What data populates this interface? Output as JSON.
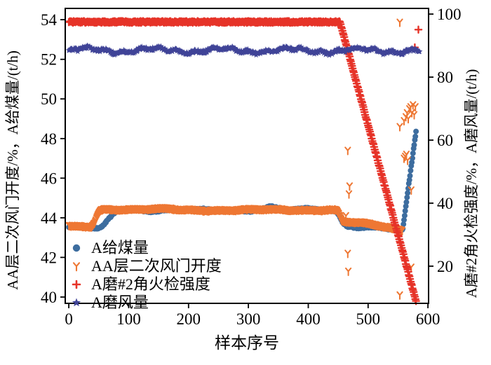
{
  "chart_data": {
    "type": "scatter",
    "title": "",
    "xlabel": "样本序号",
    "ylabel_left": "AA层二次风门开度/%，A给煤量/(t/h)",
    "ylabel_right": "A磨#2角火检强度/%，A磨风量/(t/h)",
    "x_range": [
      -6,
      601
    ],
    "x_ticks": [
      0,
      100,
      200,
      300,
      400,
      500,
      600
    ],
    "y_left_range": [
      39.68,
      54.57
    ],
    "y_left_ticks": [
      40,
      42,
      44,
      46,
      48,
      50,
      52,
      54
    ],
    "y_right_range": [
      8.2,
      101.8
    ],
    "y_right_ticks": [
      20,
      40,
      60,
      80,
      100
    ],
    "grid": false,
    "background": "#ffffff",
    "frame_color": "#000000",
    "series": [
      {
        "name": "A给煤量",
        "axis": "left",
        "marker": "circle",
        "color": "#3D6D9F",
        "size": 4,
        "sampling": {
          "start": 0,
          "end": 580,
          "step": 1
        },
        "keypoints": [
          [
            0,
            43.5
          ],
          [
            30,
            43.5
          ],
          [
            40,
            43.42
          ],
          [
            50,
            43.4
          ],
          [
            56,
            43.5
          ],
          [
            66,
            43.9
          ],
          [
            78,
            44.35
          ],
          [
            90,
            44.45
          ],
          [
            100,
            44.42
          ],
          [
            130,
            44.38
          ],
          [
            200,
            44.36
          ],
          [
            300,
            44.38
          ],
          [
            336,
            44.55
          ],
          [
            348,
            44.5
          ],
          [
            360,
            44.4
          ],
          [
            430,
            44.4
          ],
          [
            447,
            44.32
          ],
          [
            452,
            44.1
          ],
          [
            458,
            43.75
          ],
          [
            465,
            43.6
          ],
          [
            500,
            43.55
          ],
          [
            530,
            43.45
          ],
          [
            548,
            43.38
          ],
          [
            557,
            43.35
          ],
          [
            558,
            43.4
          ],
          [
            580,
            48.3
          ]
        ],
        "wave": [
          [
            0.05,
            0.035,
            0.5
          ],
          [
            0.035,
            0.11,
            2.0
          ]
        ],
        "jitter": 0.07,
        "outliers": []
      },
      {
        "name": "AA层二次风门开度",
        "axis": "left",
        "marker": "tri",
        "color": "#EE7733",
        "size": 5.5,
        "sampling": {
          "start": 0,
          "end": 557,
          "step": 1
        },
        "keypoints": [
          [
            0,
            43.55
          ],
          [
            38,
            43.55
          ],
          [
            43,
            43.75
          ],
          [
            48,
            44.1
          ],
          [
            53,
            44.38
          ],
          [
            60,
            44.45
          ],
          [
            170,
            44.45
          ],
          [
            180,
            44.4
          ],
          [
            440,
            44.42
          ],
          [
            448,
            44.35
          ],
          [
            452,
            44.1
          ],
          [
            456,
            43.85
          ],
          [
            462,
            43.8
          ],
          [
            500,
            43.7
          ],
          [
            530,
            43.55
          ],
          [
            545,
            43.45
          ],
          [
            557,
            43.4
          ]
        ],
        "wave": [
          [
            0.03,
            0.04,
            1.2
          ],
          [
            0.02,
            0.13,
            0.3
          ]
        ],
        "jitter": 0.04,
        "outliers": [
          [
            466,
            47.4
          ],
          [
            469,
            45.6
          ],
          [
            468,
            45.2
          ],
          [
            463,
            44.1
          ],
          [
            466,
            42.2
          ],
          [
            467,
            41.3
          ],
          [
            553,
            53.87
          ],
          [
            553,
            40.1
          ],
          [
            572,
            41.5
          ],
          [
            560,
            47.0
          ],
          [
            562,
            47.1
          ],
          [
            564,
            47.2
          ],
          [
            566,
            46.9
          ],
          [
            553,
            48.6
          ],
          [
            560,
            48.9
          ],
          [
            563,
            49.1
          ],
          [
            565,
            49.3
          ],
          [
            567,
            49.0
          ],
          [
            569,
            49.5
          ],
          [
            571,
            49.6
          ],
          [
            573,
            49.3
          ],
          [
            575,
            49.7
          ],
          [
            577,
            49.2
          ],
          [
            579,
            49.6
          ],
          [
            572,
            45.4
          ]
        ]
      },
      {
        "name": "A磨#2角火检强度",
        "axis": "right",
        "marker": "plus",
        "color": "#E63328",
        "size": 4.6,
        "sampling": {
          "start": 0,
          "end": 580,
          "step": 1
        },
        "keypoints": [
          [
            0,
            97.5
          ],
          [
            453,
            97.5
          ],
          [
            580,
            9.0
          ]
        ],
        "wave": [],
        "jitter": 0.5,
        "outliers": [
          [
            578,
            52.6
          ],
          [
            584,
            53.5
          ]
        ]
      },
      {
        "name": "A磨风量",
        "axis": "right",
        "marker": "star",
        "color": "#3F4397",
        "size": 4.6,
        "sampling": {
          "start": 0,
          "end": 586,
          "step": 1
        },
        "keypoints": [
          [
            0,
            88.5
          ],
          [
            586,
            88.4
          ]
        ],
        "wave": [
          [
            0.7,
            0.055,
            0
          ],
          [
            0.4,
            0.21,
            1.3
          ]
        ],
        "jitter": 1.0,
        "outliers": []
      }
    ],
    "legend": [
      {
        "label": "A给煤量",
        "marker": "circle",
        "color": "#3D6D9F",
        "icon": "circle-marker-icon"
      },
      {
        "label": "AA层二次风门开度",
        "marker": "tri",
        "color": "#EE7733",
        "icon": "tri-marker-icon"
      },
      {
        "label": "A磨#2角火检强度",
        "marker": "plus",
        "color": "#E63328",
        "icon": "plus-marker-icon"
      },
      {
        "label": "A磨风量",
        "marker": "star",
        "color": "#3F4397",
        "icon": "star-marker-icon"
      }
    ]
  }
}
